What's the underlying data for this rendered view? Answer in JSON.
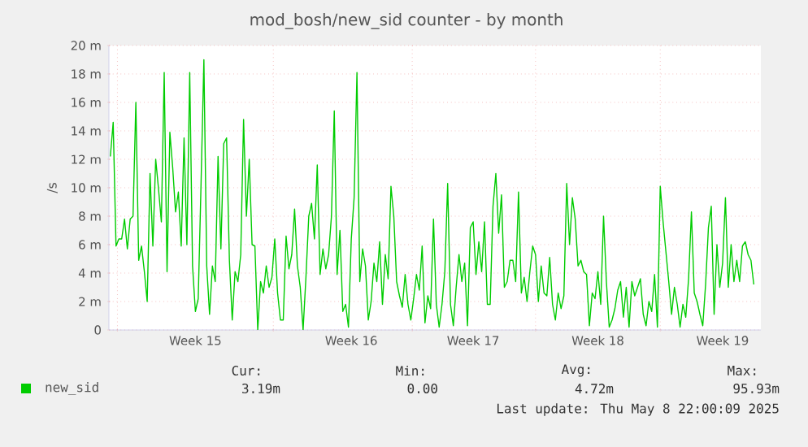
{
  "chart_data": {
    "type": "line",
    "title": "mod_bosh/new_sid counter - by month",
    "ylabel": "/s",
    "categories": [
      null,
      null,
      null,
      null,
      null,
      null,
      null,
      null,
      null,
      null,
      null,
      null,
      null,
      null,
      null,
      null,
      null,
      null,
      null,
      null,
      null,
      null,
      null,
      null,
      null,
      null,
      null,
      null,
      null,
      null,
      "Week 15",
      null,
      null,
      null,
      null,
      null,
      null,
      null,
      null,
      null,
      null,
      null,
      null,
      null,
      null,
      null,
      null,
      null,
      null,
      null,
      null,
      null,
      null,
      null,
      null,
      null,
      null,
      null,
      null,
      null,
      null,
      null,
      null,
      null,
      null,
      null,
      null,
      null,
      null,
      null,
      null,
      null,
      null,
      null,
      null,
      null,
      null,
      null,
      null,
      null,
      null,
      null,
      null,
      null,
      null,
      "Week 16",
      null,
      null,
      null,
      null,
      null,
      null,
      null,
      null,
      null,
      null,
      null,
      null,
      null,
      null,
      null,
      null,
      null,
      null,
      null,
      null,
      null,
      null,
      null,
      null,
      null,
      null,
      null,
      null,
      null,
      null,
      null,
      null,
      null,
      null,
      null,
      null,
      null,
      null,
      null,
      null,
      null,
      null,
      "Week 17",
      null,
      null,
      null,
      null,
      null,
      null,
      null,
      null,
      null,
      null,
      null,
      null,
      null,
      null,
      null,
      null,
      null,
      null,
      null,
      null,
      null,
      null,
      null,
      null,
      null,
      null,
      null,
      null,
      null,
      null,
      null,
      null,
      null,
      null,
      null,
      null,
      null,
      null,
      null,
      null,
      null,
      null,
      null,
      "Week 18",
      null,
      null,
      null,
      null,
      null,
      null,
      null,
      null,
      null,
      null,
      null,
      null,
      null,
      null,
      null,
      null,
      null,
      null,
      null,
      null,
      null,
      null,
      null,
      null,
      null,
      null,
      null,
      null,
      null,
      null,
      null,
      null,
      null,
      null,
      null,
      null,
      null,
      null,
      null,
      null,
      null,
      null,
      null,
      "Week 19",
      null,
      null,
      null,
      null,
      null,
      null,
      null,
      null,
      null,
      null,
      null
    ],
    "series": [
      {
        "name": "new_sid",
        "color": "#00cc00",
        "values": [
          12.2,
          14.6,
          5.9,
          6.4,
          6.4,
          7.8,
          5.7,
          7.8,
          8.0,
          16.0,
          4.9,
          5.9,
          4.1,
          2.0,
          11.0,
          5.9,
          12.0,
          9.9,
          7.6,
          18.1,
          4.1,
          13.9,
          11.4,
          8.3,
          9.7,
          5.9,
          13.5,
          6.0,
          18.1,
          4.5,
          1.3,
          2.2,
          10.3,
          19.0,
          4.5,
          1.1,
          4.5,
          3.4,
          12.2,
          5.7,
          13.1,
          13.5,
          4.9,
          0.7,
          4.1,
          3.4,
          5.3,
          14.8,
          8.0,
          12.0,
          6.0,
          5.9,
          0,
          3.4,
          2.6,
          4.5,
          3.0,
          3.7,
          6.4,
          2.6,
          0.7,
          0.7,
          6.6,
          4.3,
          5.3,
          8.5,
          4.5,
          3.0,
          0,
          3.7,
          8.0,
          8.9,
          6.4,
          11.6,
          3.9,
          5.7,
          4.3,
          5.3,
          8.0,
          15.4,
          3.9,
          7.0,
          1.3,
          1.8,
          0.2,
          6.4,
          9.3,
          18.1,
          3.4,
          5.7,
          4.5,
          0.7,
          2.0,
          4.7,
          3.4,
          6.2,
          1.8,
          5.3,
          3.6,
          10.1,
          8.0,
          3.4,
          2.4,
          1.6,
          3.9,
          1.8,
          0.7,
          2.2,
          3.9,
          2.8,
          5.9,
          0.5,
          2.4,
          1.5,
          7.8,
          1.8,
          0.2,
          1.8,
          4.1,
          10.3,
          1.8,
          0.3,
          3.0,
          5.3,
          3.4,
          4.7,
          0.3,
          7.2,
          7.6,
          3.9,
          6.2,
          4.1,
          7.6,
          1.8,
          1.8,
          8.7,
          11.0,
          6.8,
          9.5,
          3.0,
          3.4,
          4.9,
          4.9,
          3.4,
          9.7,
          2.6,
          3.7,
          2.0,
          4.1,
          5.9,
          5.3,
          2.0,
          4.5,
          2.6,
          2.4,
          5.1,
          1.8,
          0.7,
          2.6,
          1.5,
          2.4,
          10.3,
          6.0,
          9.3,
          7.8,
          4.5,
          4.9,
          4.1,
          3.9,
          0.3,
          2.6,
          2.2,
          4.1,
          1.8,
          8.0,
          3.4,
          0.2,
          0.7,
          1.5,
          2.8,
          3.4,
          0.9,
          3.0,
          0.2,
          3.4,
          2.4,
          3.0,
          3.6,
          1.1,
          0.3,
          2.0,
          1.3,
          3.9,
          0.2,
          10.1,
          7.6,
          5.5,
          3.4,
          1.1,
          3.0,
          1.8,
          0.2,
          1.8,
          0.9,
          3.6,
          8.3,
          2.6,
          2.0,
          1.1,
          0.3,
          3.2,
          7.2,
          8.7,
          1.1,
          6.0,
          3.0,
          4.7,
          9.3,
          3.0,
          6.0,
          3.4,
          4.9,
          3.4,
          5.9,
          6.2,
          5.3,
          4.9,
          3.2
        ]
      }
    ],
    "ylim": [
      0,
      20
    ],
    "yticks": [
      0,
      {
        "value": 2,
        "label": "2 m"
      },
      {
        "value": 4,
        "label": "4 m"
      },
      {
        "value": 6,
        "label": "6 m"
      },
      {
        "value": 8,
        "label": "8 m"
      },
      {
        "value": 10,
        "label": "10 m"
      },
      {
        "value": 12,
        "label": "12 m"
      },
      {
        "value": 14,
        "label": "14 m"
      },
      {
        "value": 16,
        "label": "16 m"
      },
      {
        "value": 18,
        "label": "18 m"
      },
      {
        "value": 20,
        "label": "20 m"
      }
    ],
    "grid": true,
    "legend": "bottom",
    "marker": "none",
    "line_style": "solid",
    "annotations": [
      "Cur:",
      "Min:",
      "Avg:",
      "Max:",
      "3.19m",
      "0.00",
      "4.72m",
      "95.93m",
      "Last update: Thu May  8 22:00:09 2025"
    ]
  }
}
